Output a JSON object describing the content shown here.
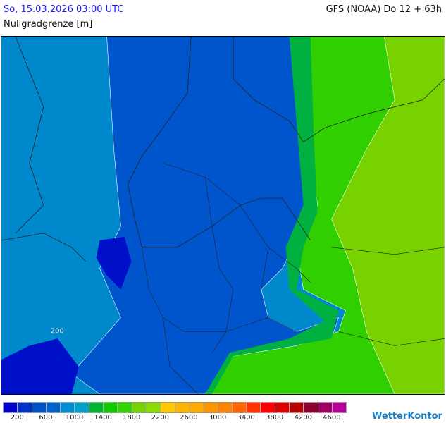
{
  "header": {
    "title": "So, 15.03.2026 03:00 UTC",
    "subtitle": "Nullgradgrenze [m]",
    "model": "GFS (NOAA) Do 12 + 63h"
  },
  "map": {
    "contour_label": "200"
  },
  "legend": {
    "colors": [
      "#0000c8",
      "#0032c8",
      "#0050c8",
      "#0064c8",
      "#008cd0",
      "#00a0c8",
      "#00b432",
      "#14c800",
      "#32d200",
      "#78d200",
      "#8cdc00",
      "#ffc800",
      "#ffb400",
      "#ffaa00",
      "#ff9600",
      "#ff8200",
      "#ff6400",
      "#ff3200",
      "#ff0000",
      "#dc0000",
      "#b40000",
      "#8c0032",
      "#a00064",
      "#b40096"
    ],
    "labels": [
      "200",
      "600",
      "1000",
      "1400",
      "1800",
      "2200",
      "2600",
      "3000",
      "3400",
      "3800",
      "4200",
      "4600"
    ]
  },
  "logo": "WetterKontor"
}
